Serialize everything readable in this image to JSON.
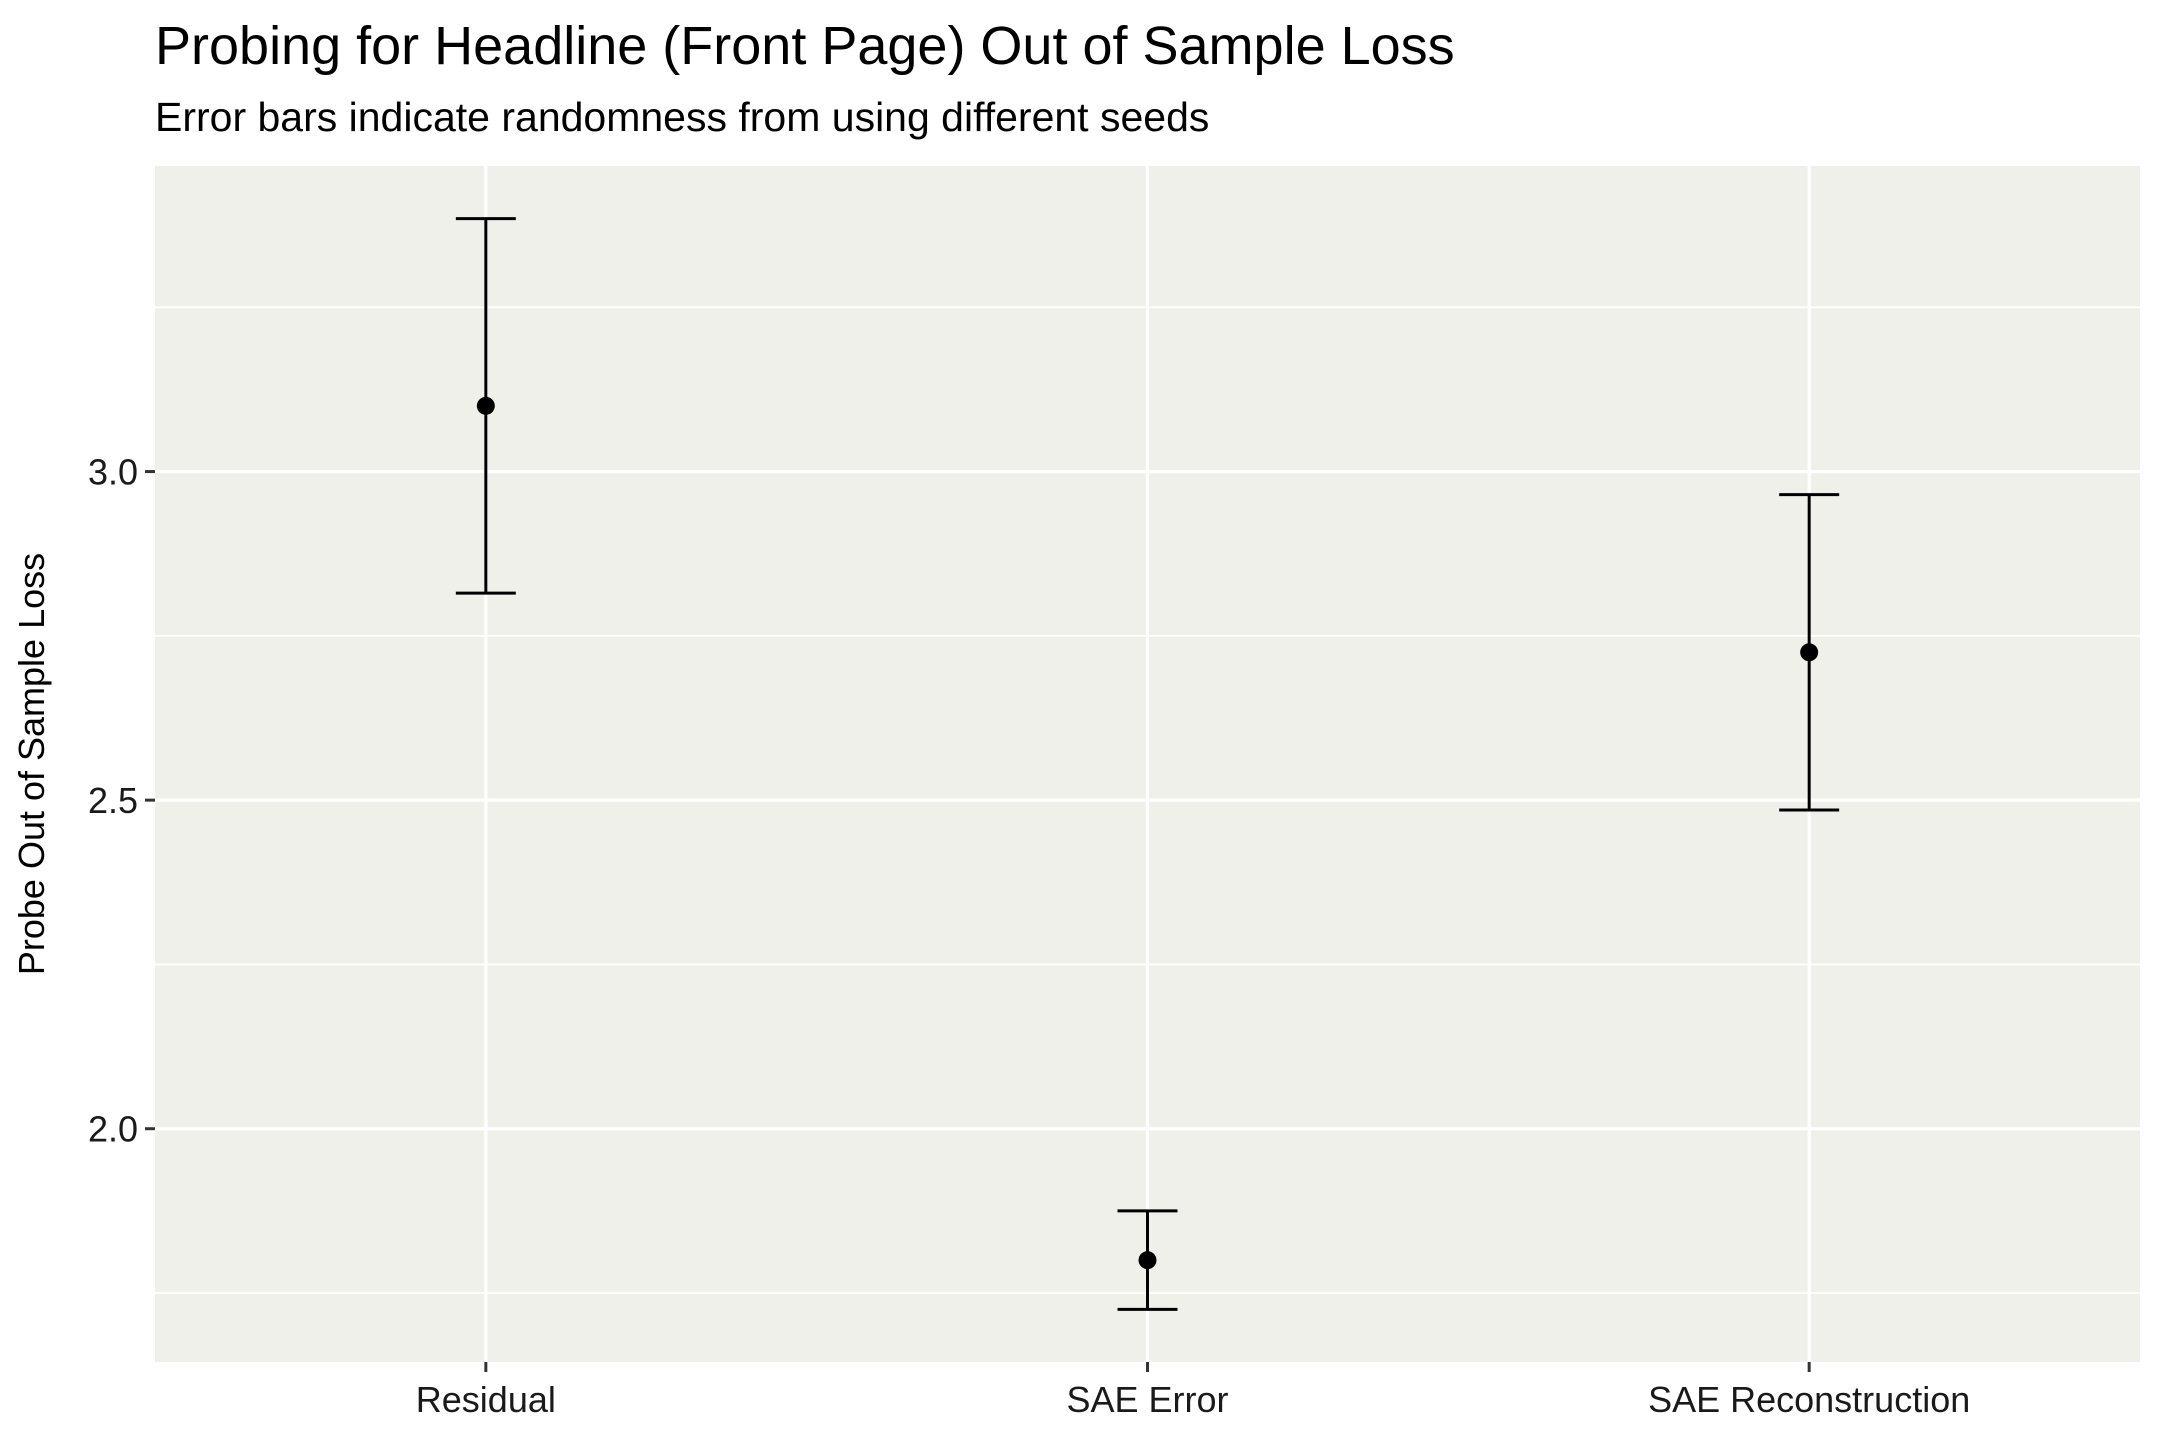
{
  "chart_data": {
    "type": "scatter",
    "title": "Probing for Headline (Front Page) Out of Sample Loss",
    "subtitle": "Error bars indicate randomness from using different seeds",
    "xlabel": "",
    "ylabel": "Probe Out of Sample Loss",
    "categories": [
      "Residual",
      "SAE Error",
      "SAE Reconstruction"
    ],
    "points": [
      {
        "category": "Residual",
        "value": 3.1,
        "lower": 2.815,
        "upper": 3.385
      },
      {
        "category": "SAE Error",
        "value": 1.8,
        "lower": 1.725,
        "upper": 1.875
      },
      {
        "category": "SAE Reconstruction",
        "value": 2.725,
        "lower": 2.485,
        "upper": 2.965
      }
    ],
    "yticks": [
      2.0,
      2.5,
      3.0
    ],
    "ytick_labels": [
      "2.0",
      "2.5",
      "3.0"
    ],
    "ylim": [
      1.645,
      3.465
    ],
    "grid": true,
    "legend": "none",
    "colors": {
      "panel_background": "#f0f0eb",
      "grid": "#ffffff",
      "marks": "#000000"
    }
  }
}
